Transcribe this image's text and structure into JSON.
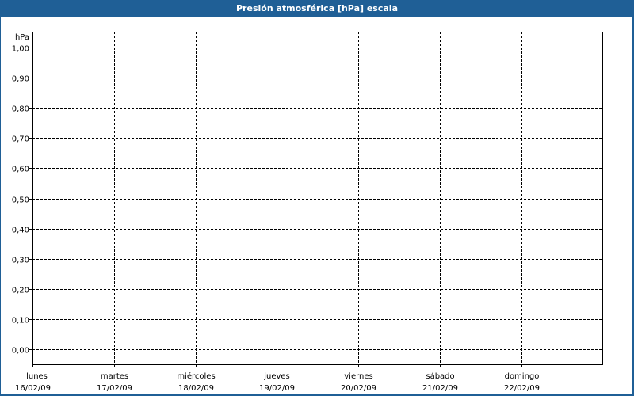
{
  "window": {
    "title": "Presión atmosférica [hPa] escala"
  },
  "chart_data": {
    "type": "line",
    "title": "Presión atmosférica [hPa] escala",
    "ylabel": "hPa",
    "ylim": [
      0,
      1
    ],
    "yticks": [
      "0,00",
      "0,10",
      "0,20",
      "0,30",
      "0,40",
      "0,50",
      "0,60",
      "0,70",
      "0,80",
      "0,90",
      "1,00"
    ],
    "categories": [
      {
        "day": "lunes",
        "date": "16/02/09"
      },
      {
        "day": "martes",
        "date": "17/02/09"
      },
      {
        "day": "miércoles",
        "date": "18/02/09"
      },
      {
        "day": "jueves",
        "date": "19/02/09"
      },
      {
        "day": "viernes",
        "date": "20/02/09"
      },
      {
        "day": "sábado",
        "date": "21/02/09"
      },
      {
        "day": "domingo",
        "date": "22/02/09"
      }
    ],
    "series": [],
    "grid": true,
    "colors": {
      "frame": "#1f5f96",
      "grid": "#000000"
    }
  }
}
